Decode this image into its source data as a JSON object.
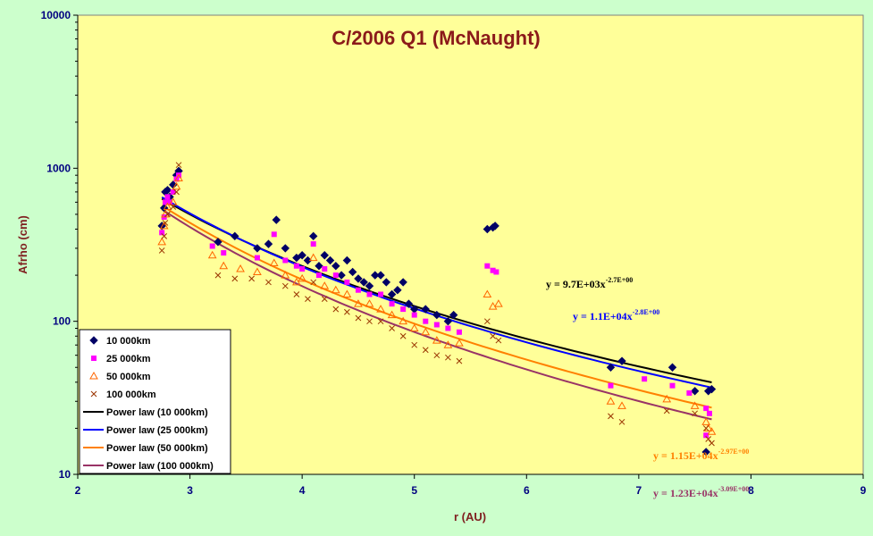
{
  "chart_data": {
    "type": "scatter",
    "title": "C/2006 Q1 (McNaught)",
    "xlabel": "r (AU)",
    "ylabel": "Afrho (cm)",
    "xlim": [
      2,
      9
    ],
    "ylim": [
      10,
      10000
    ],
    "y_scale": "log",
    "x_ticks": [
      "2",
      "3",
      "4",
      "5",
      "6",
      "7",
      "8",
      "9"
    ],
    "y_ticks": [
      "10",
      "100",
      "1000",
      "10000"
    ],
    "grid": false,
    "legend_position": "bottom-left",
    "colors": {
      "background": "#ccffcc",
      "plot_area": "#ffff99",
      "s10": "#000066",
      "s25": "#ff00ff",
      "s50": "#ff6600",
      "s100": "#993300",
      "fit10": "#000000",
      "fit25": "#0000ff",
      "fit50": "#ff8000",
      "fit100": "#993366"
    },
    "series": [
      {
        "name": "10 000km",
        "marker": "diamond",
        "points": [
          [
            2.75,
            420
          ],
          [
            2.77,
            550
          ],
          [
            2.78,
            700
          ],
          [
            2.8,
            720
          ],
          [
            2.82,
            650
          ],
          [
            2.85,
            780
          ],
          [
            2.88,
            900
          ],
          [
            2.9,
            960
          ],
          [
            3.25,
            330
          ],
          [
            3.4,
            360
          ],
          [
            3.6,
            300
          ],
          [
            3.7,
            320
          ],
          [
            3.77,
            460
          ],
          [
            3.85,
            300
          ],
          [
            3.95,
            260
          ],
          [
            4.0,
            270
          ],
          [
            4.05,
            250
          ],
          [
            4.1,
            360
          ],
          [
            4.15,
            230
          ],
          [
            4.2,
            270
          ],
          [
            4.25,
            250
          ],
          [
            4.3,
            230
          ],
          [
            4.35,
            200
          ],
          [
            4.4,
            250
          ],
          [
            4.45,
            210
          ],
          [
            4.5,
            190
          ],
          [
            4.55,
            180
          ],
          [
            4.6,
            170
          ],
          [
            4.65,
            200
          ],
          [
            4.7,
            200
          ],
          [
            4.75,
            180
          ],
          [
            4.8,
            150
          ],
          [
            4.85,
            160
          ],
          [
            4.9,
            180
          ],
          [
            4.95,
            130
          ],
          [
            5.0,
            120
          ],
          [
            5.1,
            120
          ],
          [
            5.2,
            110
          ],
          [
            5.3,
            100
          ],
          [
            5.35,
            110
          ],
          [
            5.65,
            400
          ],
          [
            5.7,
            410
          ],
          [
            5.72,
            420
          ],
          [
            6.75,
            50
          ],
          [
            6.85,
            55
          ],
          [
            7.3,
            50
          ],
          [
            7.5,
            35
          ],
          [
            7.62,
            35
          ],
          [
            7.65,
            36
          ],
          [
            7.6,
            14
          ]
        ]
      },
      {
        "name": "25 000km",
        "marker": "square",
        "points": [
          [
            2.75,
            380
          ],
          [
            2.77,
            480
          ],
          [
            2.78,
            600
          ],
          [
            2.8,
            650
          ],
          [
            2.82,
            600
          ],
          [
            2.85,
            700
          ],
          [
            2.88,
            850
          ],
          [
            2.9,
            900
          ],
          [
            3.2,
            310
          ],
          [
            3.3,
            280
          ],
          [
            3.6,
            260
          ],
          [
            3.75,
            370
          ],
          [
            3.85,
            250
          ],
          [
            3.95,
            230
          ],
          [
            4.0,
            220
          ],
          [
            4.1,
            320
          ],
          [
            4.15,
            200
          ],
          [
            4.2,
            220
          ],
          [
            4.3,
            200
          ],
          [
            4.4,
            180
          ],
          [
            4.5,
            160
          ],
          [
            4.6,
            150
          ],
          [
            4.7,
            150
          ],
          [
            4.8,
            130
          ],
          [
            4.9,
            120
          ],
          [
            5.0,
            110
          ],
          [
            5.1,
            100
          ],
          [
            5.2,
            95
          ],
          [
            5.3,
            90
          ],
          [
            5.4,
            85
          ],
          [
            5.65,
            230
          ],
          [
            5.7,
            215
          ],
          [
            5.73,
            210
          ],
          [
            6.75,
            38
          ],
          [
            7.05,
            42
          ],
          [
            7.3,
            38
          ],
          [
            7.45,
            34
          ],
          [
            7.6,
            27
          ],
          [
            7.63,
            25
          ],
          [
            7.6,
            18
          ]
        ]
      },
      {
        "name": "50 000km",
        "marker": "triangle",
        "points": [
          [
            2.75,
            330
          ],
          [
            2.77,
            420
          ],
          [
            2.78,
            500
          ],
          [
            2.8,
            560
          ],
          [
            2.85,
            600
          ],
          [
            2.88,
            760
          ],
          [
            2.9,
            860
          ],
          [
            3.2,
            270
          ],
          [
            3.3,
            230
          ],
          [
            3.45,
            220
          ],
          [
            3.6,
            210
          ],
          [
            3.75,
            240
          ],
          [
            3.85,
            200
          ],
          [
            3.95,
            180
          ],
          [
            4.0,
            190
          ],
          [
            4.1,
            260
          ],
          [
            4.2,
            170
          ],
          [
            4.3,
            160
          ],
          [
            4.4,
            150
          ],
          [
            4.5,
            130
          ],
          [
            4.6,
            130
          ],
          [
            4.7,
            120
          ],
          [
            4.8,
            110
          ],
          [
            4.9,
            100
          ],
          [
            5.0,
            90
          ],
          [
            5.1,
            85
          ],
          [
            5.2,
            75
          ],
          [
            5.3,
            70
          ],
          [
            5.4,
            72
          ],
          [
            5.65,
            150
          ],
          [
            5.7,
            125
          ],
          [
            5.75,
            130
          ],
          [
            6.75,
            30
          ],
          [
            6.85,
            28
          ],
          [
            7.25,
            31
          ],
          [
            7.5,
            28
          ],
          [
            7.6,
            22
          ],
          [
            7.62,
            20
          ],
          [
            7.65,
            19
          ]
        ]
      },
      {
        "name": "100 000km",
        "marker": "cross",
        "points": [
          [
            2.75,
            290
          ],
          [
            2.77,
            360
          ],
          [
            2.78,
            440
          ],
          [
            2.8,
            500
          ],
          [
            2.85,
            560
          ],
          [
            2.88,
            700
          ],
          [
            2.9,
            1050
          ],
          [
            3.25,
            200
          ],
          [
            3.4,
            190
          ],
          [
            3.55,
            190
          ],
          [
            3.7,
            180
          ],
          [
            3.85,
            170
          ],
          [
            3.95,
            150
          ],
          [
            4.05,
            140
          ],
          [
            4.1,
            180
          ],
          [
            4.2,
            140
          ],
          [
            4.3,
            120
          ],
          [
            4.4,
            115
          ],
          [
            4.5,
            105
          ],
          [
            4.6,
            100
          ],
          [
            4.7,
            100
          ],
          [
            4.8,
            90
          ],
          [
            4.9,
            80
          ],
          [
            5.0,
            70
          ],
          [
            5.1,
            65
          ],
          [
            5.2,
            60
          ],
          [
            5.3,
            58
          ],
          [
            5.4,
            55
          ],
          [
            5.65,
            100
          ],
          [
            5.7,
            80
          ],
          [
            5.75,
            75
          ],
          [
            6.75,
            24
          ],
          [
            6.85,
            22
          ],
          [
            7.25,
            26
          ],
          [
            7.5,
            25
          ],
          [
            7.6,
            20
          ],
          [
            7.62,
            17
          ],
          [
            7.65,
            16
          ]
        ]
      },
      {
        "name": "Power law (10 000km)",
        "fit": {
          "a": 9700,
          "b": -2.7
        },
        "x_range": [
          2.75,
          7.65
        ]
      },
      {
        "name": "Power law (25 000km)",
        "fit": {
          "a": 11000,
          "b": -2.8
        },
        "x_range": [
          2.75,
          7.65
        ]
      },
      {
        "name": "Power law (50 000km)",
        "fit": {
          "a": 11500,
          "b": -2.97
        },
        "x_range": [
          2.75,
          7.65
        ]
      },
      {
        "name": "Power law (100 000km)",
        "fit": {
          "a": 12300,
          "b": -3.09
        },
        "x_range": [
          2.75,
          7.65
        ]
      }
    ],
    "annotations": [
      {
        "base": "y = 9.7E+03x",
        "exp": "-2.7E+00",
        "color": "#000000"
      },
      {
        "base": "y = 1.1E+04x",
        "exp": "-2.8E+00",
        "color": "#0000ff"
      },
      {
        "base": "y = 1.15E+04x",
        "exp": "-2.97E+00",
        "color": "#ff8000"
      },
      {
        "base": "y = 1.23E+04x",
        "exp": "-3.09E+00",
        "color": "#993366"
      }
    ]
  }
}
